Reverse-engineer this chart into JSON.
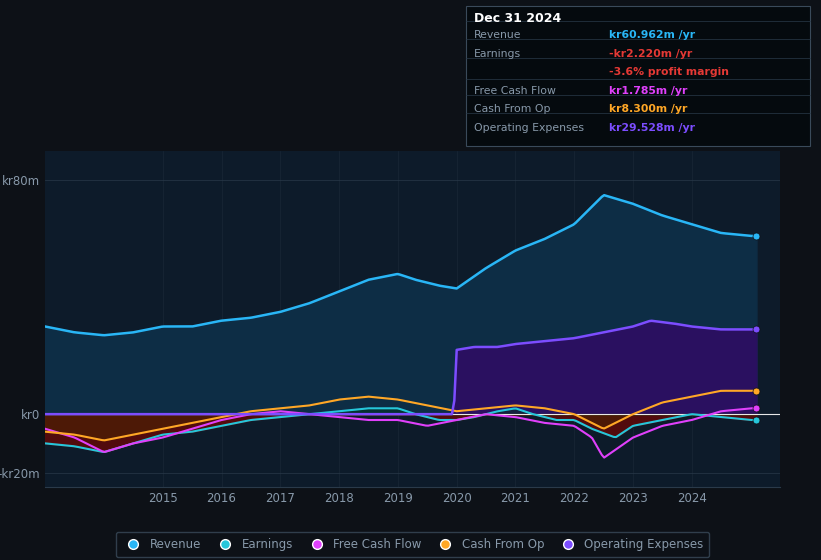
{
  "bg_color": "#0d1117",
  "plot_bg_color": "#0d1b2a",
  "text_color": "#8899aa",
  "grid_color": "#2a3a4a",
  "ylim": [
    -25,
    90
  ],
  "yticks": [
    -20,
    0,
    80
  ],
  "ytick_labels": [
    "-kr20m",
    "kr0",
    "kr80m"
  ],
  "xtick_vals": [
    2015,
    2016,
    2017,
    2018,
    2019,
    2020,
    2021,
    2022,
    2023,
    2024
  ],
  "xtick_labels": [
    "2015",
    "2016",
    "2017",
    "2018",
    "2019",
    "2020",
    "2021",
    "2022",
    "2023",
    "2024"
  ],
  "colors": {
    "revenue": "#29b6f6",
    "earnings": "#26c6da",
    "free_cash_flow": "#e040fb",
    "cash_from_op": "#ffa726",
    "operating_expenses": "#7c4dff"
  },
  "fill_revenue": "#0d2d45",
  "fill_earnings_neg": "#5a0a0a",
  "fill_opex": "#2a1060",
  "info_box": {
    "title": "Dec 31 2024",
    "rows": [
      {
        "label": "Revenue",
        "value": "kr60.962m /yr",
        "value_color": "#29b6f6",
        "label_color": "#8899aa"
      },
      {
        "label": "Earnings",
        "value": "-kr2.220m /yr",
        "value_color": "#e53935",
        "label_color": "#8899aa"
      },
      {
        "label": "",
        "value": "-3.6% profit margin",
        "value_color": "#e53935",
        "label_color": "#8899aa"
      },
      {
        "label": "Free Cash Flow",
        "value": "kr1.785m /yr",
        "value_color": "#e040fb",
        "label_color": "#8899aa"
      },
      {
        "label": "Cash From Op",
        "value": "kr8.300m /yr",
        "value_color": "#ffa726",
        "label_color": "#8899aa"
      },
      {
        "label": "Operating Expenses",
        "value": "kr29.528m /yr",
        "value_color": "#7c4dff",
        "label_color": "#8899aa"
      }
    ]
  },
  "legend_items": [
    {
      "label": "Revenue",
      "color": "#29b6f6"
    },
    {
      "label": "Earnings",
      "color": "#26c6da"
    },
    {
      "label": "Free Cash Flow",
      "color": "#e040fb"
    },
    {
      "label": "Cash From Op",
      "color": "#ffa726"
    },
    {
      "label": "Operating Expenses",
      "color": "#7c4dff"
    }
  ]
}
